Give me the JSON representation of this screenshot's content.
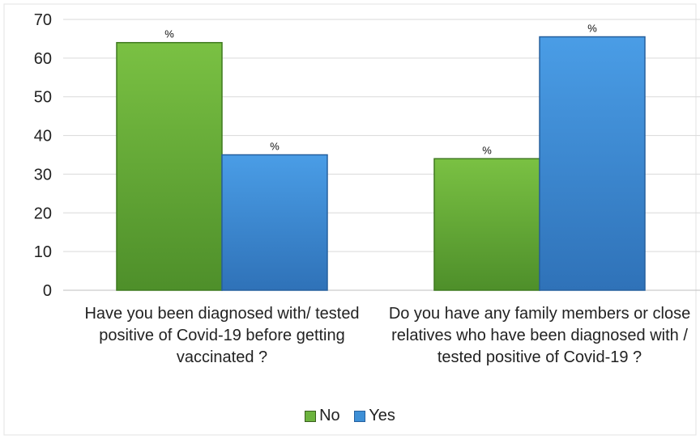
{
  "chart_data": {
    "type": "bar",
    "categories": [
      "Have you been diagnosed with/ tested positive of Covid-19 before getting vaccinated ?",
      "Do you have any family members or close relatives who have been diagnosed with / tested positive of Covid-19 ?"
    ],
    "series": [
      {
        "name": "No",
        "values": [
          64,
          34
        ],
        "color": "#6cb33e",
        "data_labels": [
          "%",
          "%"
        ]
      },
      {
        "name": "Yes",
        "values": [
          35,
          65.5
        ],
        "color": "#3d8fd6",
        "data_labels": [
          "%",
          "%"
        ]
      }
    ],
    "ylim": [
      0,
      70
    ],
    "yticks": [
      "0",
      "10",
      "20",
      "30",
      "40",
      "50",
      "60",
      "70"
    ],
    "grid": true,
    "legend": "bottom"
  }
}
